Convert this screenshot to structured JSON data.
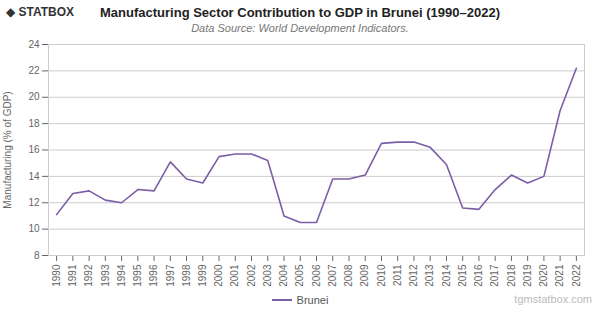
{
  "chart_data": {
    "type": "line",
    "title": "Manufacturing Sector Contribution to GDP in Brunei (1990–2022)",
    "subtitle": "Data Source: World Development Indicators.",
    "ylabel": "Manufacturing (% of GDP)",
    "annotations": [
      "◆ STATBOX",
      "tgmstatbox.com"
    ],
    "x": [
      1990,
      1991,
      1992,
      1993,
      1994,
      1995,
      1996,
      1997,
      1998,
      1999,
      2000,
      2001,
      2002,
      2003,
      2004,
      2005,
      2006,
      2007,
      2008,
      2009,
      2010,
      2011,
      2012,
      2013,
      2014,
      2015,
      2016,
      2017,
      2018,
      2019,
      2020,
      2021,
      2022
    ],
    "series": [
      {
        "name": "Brunei",
        "color": "#7b5ea7",
        "values": [
          11.1,
          12.7,
          12.9,
          12.2,
          12.0,
          13.0,
          12.9,
          15.1,
          13.8,
          13.5,
          15.5,
          15.7,
          15.7,
          15.2,
          11.0,
          10.5,
          10.5,
          13.8,
          13.8,
          14.1,
          16.5,
          16.6,
          16.6,
          16.2,
          14.9,
          11.6,
          11.5,
          13.0,
          14.1,
          13.5,
          14.0,
          19.0,
          22.2
        ]
      }
    ],
    "xlim": [
      1989.5,
      2022.5
    ],
    "xticks": [
      1990,
      1991,
      1992,
      1993,
      1994,
      1995,
      1996,
      1997,
      1998,
      1999,
      2000,
      2001,
      2002,
      2003,
      2004,
      2005,
      2006,
      2007,
      2008,
      2009,
      2010,
      2011,
      2012,
      2013,
      2014,
      2015,
      2016,
      2017,
      2018,
      2019,
      2020,
      2021,
      2022
    ],
    "ylim": [
      8,
      24
    ],
    "yticks": [
      8,
      10,
      12,
      14,
      16,
      18,
      20,
      22,
      24
    ],
    "grid": true,
    "legend": "bottom"
  }
}
